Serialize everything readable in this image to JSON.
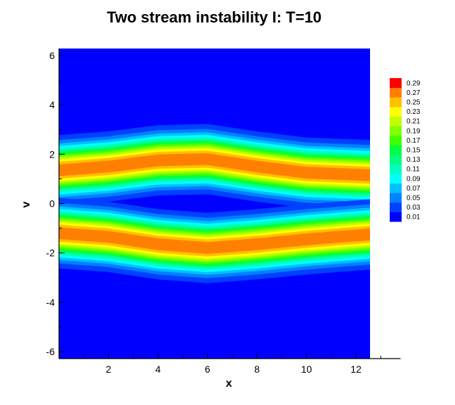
{
  "chart_data": {
    "type": "heatmap",
    "title": "Two stream instability I: T=10",
    "xlabel": "x",
    "ylabel": "v",
    "xlim": [
      0,
      12.566
    ],
    "ylim": [
      -6.28,
      6.28
    ],
    "x_axis_extent": [
      0,
      13.8
    ],
    "x_ticks": [
      2,
      4,
      6,
      8,
      10,
      12
    ],
    "x_tick_labels": [
      "2",
      "4",
      "6",
      "8",
      "10",
      "12"
    ],
    "y_ticks": [
      -6,
      -4,
      -2,
      0,
      2,
      4,
      6
    ],
    "y_tick_labels": [
      "-6",
      "-4",
      "-2",
      "0",
      "2",
      "4",
      "6"
    ],
    "grid": false,
    "colorbar": {
      "levels": [
        0.01,
        0.03,
        0.05,
        0.07,
        0.09,
        0.11,
        0.13,
        0.15,
        0.17,
        0.19,
        0.21,
        0.23,
        0.25,
        0.27,
        0.29
      ],
      "labels": [
        "0.01",
        "0.03",
        "0.05",
        "0.07",
        "0.09",
        "0.11",
        "0.13",
        "0.15",
        "0.17",
        "0.19",
        "0.21",
        "0.23",
        "0.25",
        "0.27",
        "0.29"
      ],
      "colors": [
        "#0000ff",
        "#0040ff",
        "#0080ff",
        "#00c0ff",
        "#00ffff",
        "#00ffc0",
        "#00ff80",
        "#00ff40",
        "#40ff00",
        "#80ff00",
        "#c0ff00",
        "#ffff00",
        "#ffc000",
        "#ff8000",
        "#ff0000"
      ],
      "placement": "right"
    },
    "upper_band_center": {
      "x": [
        0,
        2,
        4,
        6,
        8,
        10,
        12.566
      ],
      "v": [
        1.35,
        1.5,
        1.75,
        1.8,
        1.5,
        1.25,
        1.15
      ]
    },
    "lower_band_center": {
      "x": [
        0,
        2,
        4,
        6,
        8,
        10,
        12.566
      ],
      "v": [
        -1.2,
        -1.35,
        -1.65,
        -1.8,
        -1.65,
        -1.45,
        -1.25
      ]
    },
    "peak_value": 0.29,
    "background_value": 0.01
  }
}
